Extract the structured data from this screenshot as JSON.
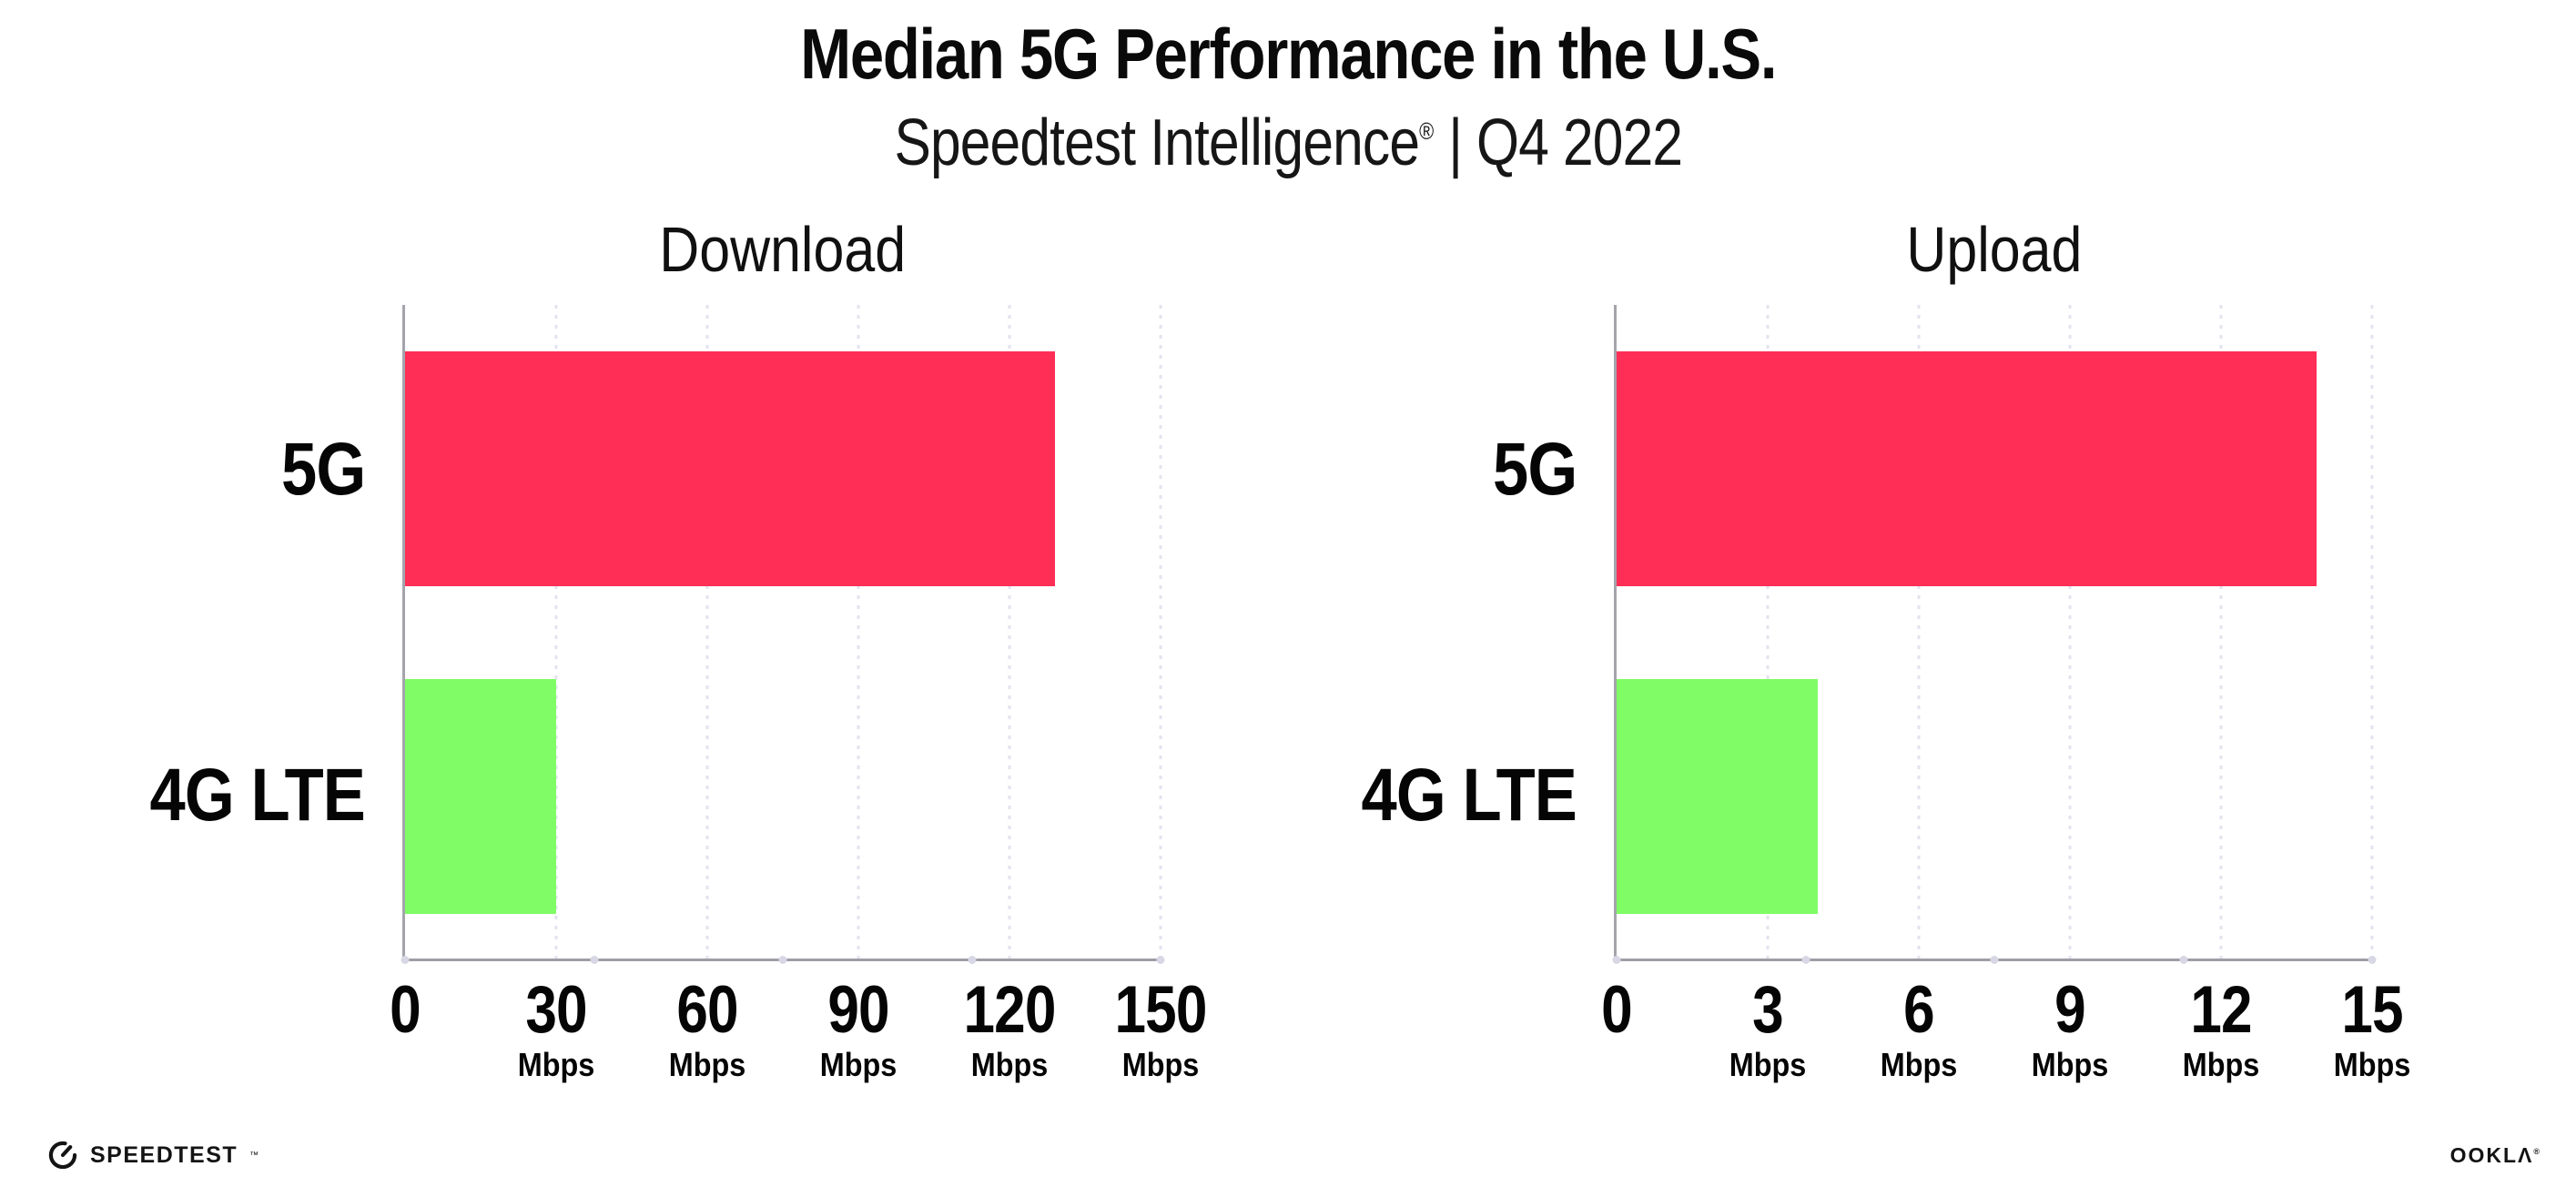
{
  "header": {
    "title": "Median 5G Performance in the U.S.",
    "subtitle_brand": "Speedtest Intelligence",
    "subtitle_reg": "®",
    "subtitle_period": " | Q4 2022"
  },
  "chart_data": [
    {
      "type": "bar",
      "orientation": "horizontal",
      "title": "Download",
      "categories": [
        "5G",
        "4G LTE"
      ],
      "values": [
        129,
        30
      ],
      "unit": "Mbps",
      "xlim": [
        0,
        150
      ],
      "xticks": [
        0,
        30,
        60,
        90,
        120,
        150
      ],
      "tick_unit_label": "Mbps",
      "bar_colors": [
        "#FF2E56",
        "#80FD66"
      ],
      "grid": "vertical-dotted",
      "legend": "none"
    },
    {
      "type": "bar",
      "orientation": "horizontal",
      "title": "Upload",
      "categories": [
        "5G",
        "4G LTE"
      ],
      "values": [
        13.9,
        4
      ],
      "unit": "Mbps",
      "xlim": [
        0,
        15
      ],
      "xticks": [
        0,
        3,
        6,
        9,
        12,
        15
      ],
      "tick_unit_label": "Mbps",
      "bar_colors": [
        "#FF2E56",
        "#80FD66"
      ],
      "grid": "vertical-dotted",
      "legend": "none"
    }
  ],
  "footer": {
    "speedtest_label": "SPEEDTEST",
    "speedtest_tm": "™",
    "ookla_label": "OOKLΛ",
    "ookla_reg": "®"
  },
  "colors": {
    "bar_5g": "#FF2E56",
    "bar_4g_lte": "#80FD66",
    "axis": "#A4A4AC",
    "gridline": "#E3E3EF",
    "axis_dot": "#D7D7E5",
    "text": "#0A0A0A"
  }
}
